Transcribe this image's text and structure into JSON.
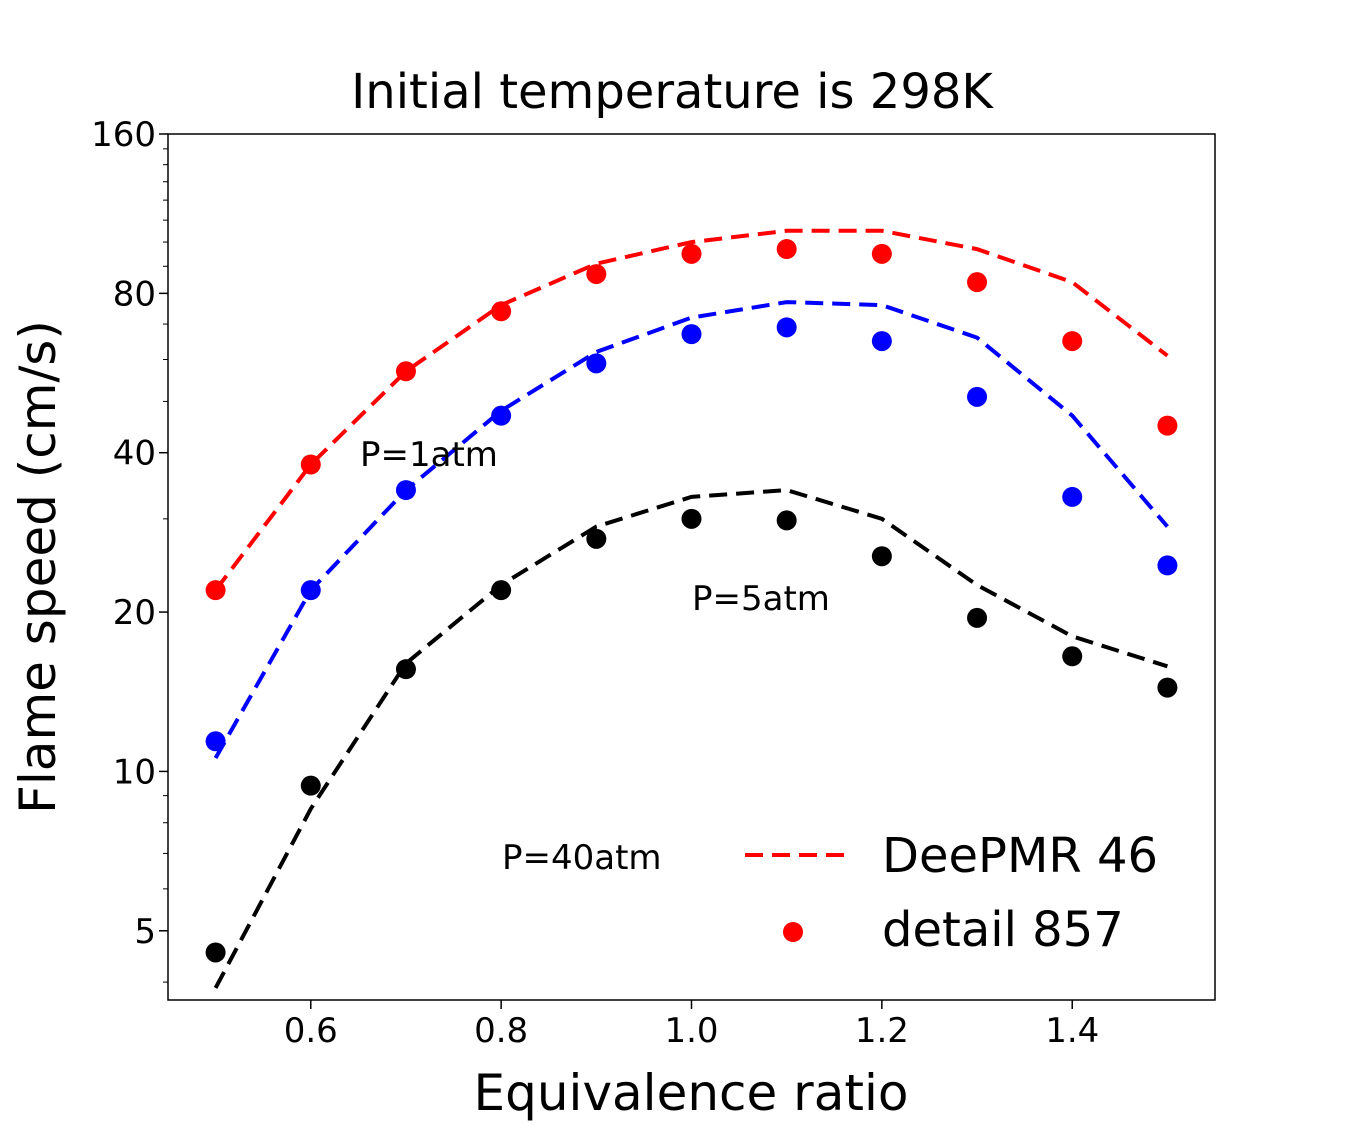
{
  "chart_data": {
    "type": "line",
    "title": "Initial temperature is 298K",
    "xlabel": "Equivalence ratio",
    "ylabel": "Flame speed (cm/s)",
    "y_scale": "log2",
    "xlim": [
      0.45,
      1.55
    ],
    "ylim": [
      3.7,
      160
    ],
    "x_ticks": [
      0.6,
      0.8,
      1.0,
      1.2,
      1.4
    ],
    "x_tick_labels": [
      "0.6",
      "0.8",
      "1.0",
      "1.2",
      "1.4"
    ],
    "y_ticks": [
      5,
      10,
      20,
      40,
      80,
      160
    ],
    "y_tick_labels": [
      "5",
      "10",
      "20",
      "40",
      "80",
      "160"
    ],
    "grid": false,
    "legend_position": "bottom-right",
    "legend": [
      {
        "label": "DeePMR 46",
        "style": "dashed-line",
        "color": "#ff0000"
      },
      {
        "label": "detail 857",
        "style": "marker",
        "color": "#ff0000"
      }
    ],
    "x": [
      0.5,
      0.6,
      0.7,
      0.8,
      0.9,
      1.0,
      1.1,
      1.2,
      1.3,
      1.4,
      1.5
    ],
    "series": [
      {
        "group": "P=1atm",
        "color": "#ff0000",
        "deepmr": [
          22.0,
          38.0,
          57.0,
          76.0,
          91.0,
          100.0,
          105.0,
          105.0,
          97.0,
          84.0,
          61.0
        ],
        "detail": [
          22.0,
          38.0,
          57.0,
          74.0,
          87.0,
          95.0,
          97.0,
          95.0,
          84.0,
          65.0,
          45.0
        ]
      },
      {
        "group": "P=5atm",
        "color": "#0000ff",
        "deepmr": [
          10.6,
          22.0,
          34.0,
          48.0,
          62.0,
          72.0,
          77.0,
          76.0,
          66.0,
          47.0,
          29.0
        ],
        "detail": [
          11.4,
          22.0,
          34.0,
          47.0,
          59.0,
          67.0,
          69.0,
          65.0,
          51.0,
          33.0,
          24.5
        ]
      },
      {
        "group": "P=40atm",
        "color": "#000000",
        "deepmr": [
          3.9,
          8.5,
          16.0,
          22.5,
          29.0,
          33.0,
          34.0,
          30.0,
          22.5,
          18.0,
          15.8
        ],
        "detail": [
          4.55,
          9.4,
          15.6,
          22.0,
          27.5,
          30.0,
          29.8,
          25.5,
          19.5,
          16.5,
          14.4
        ]
      }
    ],
    "annotations": [
      "P=1atm",
      "P=5atm",
      "P=40atm"
    ]
  }
}
